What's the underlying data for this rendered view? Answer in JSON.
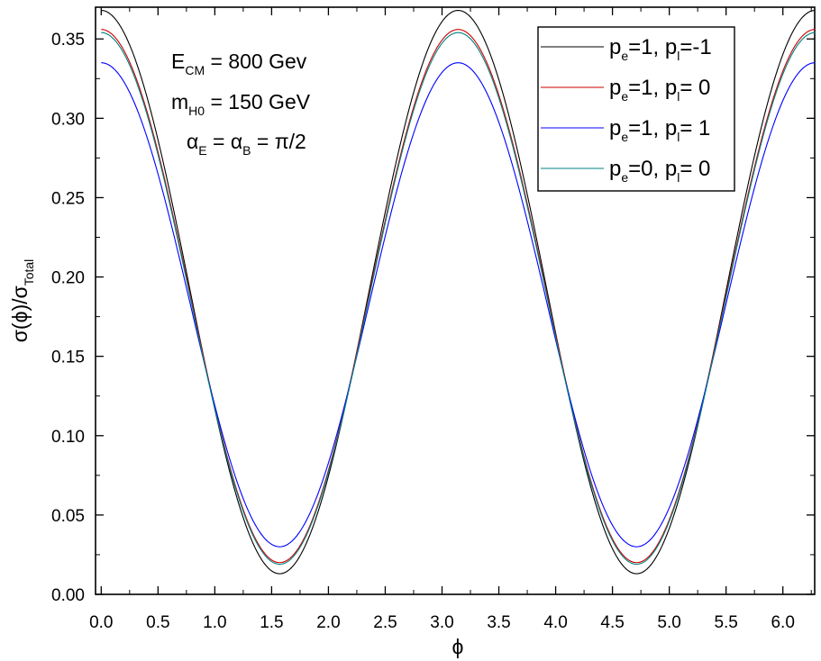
{
  "chart_data": {
    "type": "line",
    "title": "",
    "xlabel": "ϕ",
    "ylabel_main": "σ(ϕ)/σ",
    "ylabel_sub": "Total",
    "xlim": [
      -0.05,
      6.28
    ],
    "ylim": [
      0.0,
      0.37
    ],
    "xticks": [
      "0.0",
      "0.5",
      "1.0",
      "1.5",
      "2.0",
      "2.5",
      "3.0",
      "3.5",
      "4.0",
      "4.5",
      "5.0",
      "5.5",
      "6.0"
    ],
    "yticks": [
      "0.00",
      "0.05",
      "0.10",
      "0.15",
      "0.20",
      "0.25",
      "0.30",
      "0.35"
    ],
    "grid": false,
    "legend_position": "top-right",
    "series": [
      {
        "name": "p_e=1, p_l=-1",
        "color": "#000000",
        "max": 0.368,
        "min": 0.013
      },
      {
        "name": "p_e=1, p_l= 0",
        "color": "#cc0000",
        "max": 0.356,
        "min": 0.02
      },
      {
        "name": "p_e=1, p_l= 1",
        "color": "#0000ff",
        "max": 0.335,
        "min": 0.03
      },
      {
        "name": "p_e=0, p_l= 0",
        "color": "#008080",
        "max": 0.354,
        "min": 0.019
      }
    ],
    "legend": [
      {
        "a": "p",
        "a_sub": "e",
        "b": "=1, p",
        "b_sub": "l",
        "c": "=-1"
      },
      {
        "a": "p",
        "a_sub": "e",
        "b": "=1, p",
        "b_sub": "l",
        "c": "= 0"
      },
      {
        "a": "p",
        "a_sub": "e",
        "b": "=1, p",
        "b_sub": "l",
        "c": "= 1"
      },
      {
        "a": "p",
        "a_sub": "e",
        "b": "=0, p",
        "b_sub": "l",
        "c": "= 0"
      }
    ],
    "annotations": [
      {
        "main": "E",
        "sub": "CM",
        "rest": " = 800 Gev"
      },
      {
        "main": "m",
        "sub": "H0",
        "rest": " = 150 GeV"
      },
      {
        "p1": "α",
        "s1": "E",
        "p2": " = α",
        "s2": "B",
        "p3": " = π/2"
      }
    ]
  }
}
